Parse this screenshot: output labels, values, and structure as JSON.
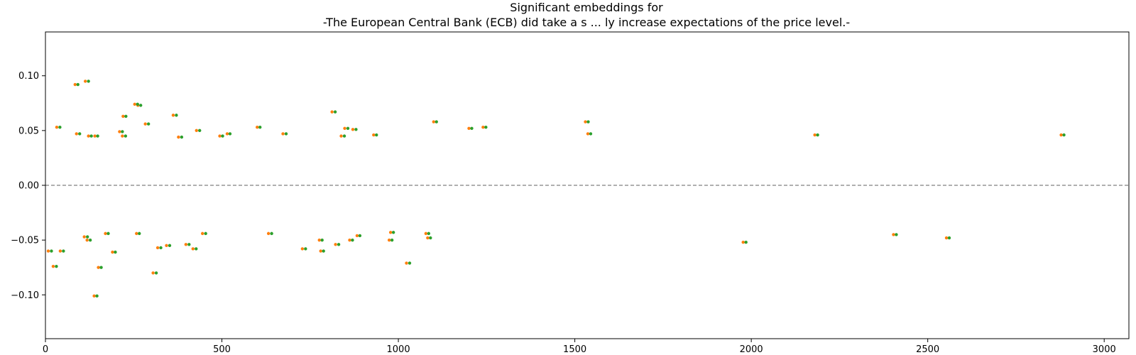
{
  "chart_data": {
    "type": "scatter",
    "title": "Significant embeddings for",
    "subtitle": "-The European Central Bank (ECB) did take a s ... ly increase expectations of the price level.-",
    "xlabel": "",
    "ylabel": "",
    "xlim": [
      0,
      3070
    ],
    "ylim": [
      -0.14,
      0.14
    ],
    "x_ticks": [
      0,
      500,
      1000,
      1500,
      2000,
      2500,
      3000
    ],
    "y_ticks": [
      -0.1,
      -0.05,
      0.0,
      0.05,
      0.1
    ],
    "grid": false,
    "reference_line": 0.0,
    "colors": {
      "series_a": "#ff7f0e",
      "series_b": "#2ca02c",
      "reference_line": "#808080"
    },
    "series": [
      {
        "x": [
          8,
          22,
          42,
          32,
          84,
          88,
          113,
          110,
          118,
          122,
          138,
          140,
          150,
          170,
          190,
          210,
          218,
          220,
          253,
          258,
          262,
          283,
          305,
          318,
          343,
          362,
          377,
          398,
          418,
          428,
          445,
          494,
          515,
          600,
          632,
          673,
          728,
          780,
          776,
          812,
          822,
          838,
          848,
          862,
          871,
          883,
          930,
          974,
          978,
          1023,
          1078,
          1083,
          1100,
          1200,
          1240,
          1530,
          1537,
          1977,
          2180,
          2403,
          2553,
          2878
        ],
        "y": [
          -0.06,
          -0.074,
          -0.06,
          0.053,
          0.092,
          0.047,
          0.095,
          -0.047,
          -0.05,
          0.045,
          -0.101,
          0.045,
          -0.075,
          -0.044,
          -0.061,
          0.049,
          0.045,
          0.063,
          0.074,
          -0.044,
          0.073,
          0.056,
          -0.08,
          -0.057,
          -0.055,
          0.064,
          0.044,
          -0.054,
          -0.058,
          0.05,
          -0.044,
          0.045,
          0.047,
          0.053,
          -0.044,
          0.047,
          -0.058,
          -0.06,
          -0.05,
          0.067,
          -0.054,
          0.045,
          0.052,
          -0.05,
          0.051,
          -0.046,
          0.046,
          -0.05,
          -0.043,
          -0.071,
          -0.044,
          -0.048,
          0.058,
          0.052,
          0.053,
          0.058,
          0.047,
          -0.052,
          0.046,
          -0.045,
          -0.048,
          0.046
        ]
      },
      {
        "x": [
          17,
          31,
          51,
          41,
          92,
          97,
          122,
          119,
          127,
          130,
          146,
          148,
          158,
          178,
          198,
          218,
          227,
          228,
          261,
          266,
          270,
          292,
          314,
          327,
          352,
          371,
          386,
          407,
          427,
          437,
          454,
          502,
          523,
          608,
          641,
          682,
          737,
          788,
          784,
          821,
          831,
          847,
          857,
          870,
          880,
          891,
          938,
          982,
          986,
          1032,
          1086,
          1091,
          1108,
          1208,
          1248,
          1538,
          1545,
          1985,
          2188,
          2411,
          2561,
          2886
        ],
        "y": [
          -0.06,
          -0.074,
          -0.06,
          0.053,
          0.092,
          0.047,
          0.095,
          -0.047,
          -0.05,
          0.045,
          -0.101,
          0.045,
          -0.075,
          -0.044,
          -0.061,
          0.049,
          0.045,
          0.063,
          0.074,
          -0.044,
          0.073,
          0.056,
          -0.08,
          -0.057,
          -0.055,
          0.064,
          0.044,
          -0.054,
          -0.058,
          0.05,
          -0.044,
          0.045,
          0.047,
          0.053,
          -0.044,
          0.047,
          -0.058,
          -0.06,
          -0.05,
          0.067,
          -0.054,
          0.045,
          0.052,
          -0.05,
          0.051,
          -0.046,
          0.046,
          -0.05,
          -0.043,
          -0.071,
          -0.044,
          -0.048,
          0.058,
          0.052,
          0.053,
          0.058,
          0.047,
          -0.052,
          0.046,
          -0.045,
          -0.048,
          0.046
        ]
      }
    ]
  }
}
